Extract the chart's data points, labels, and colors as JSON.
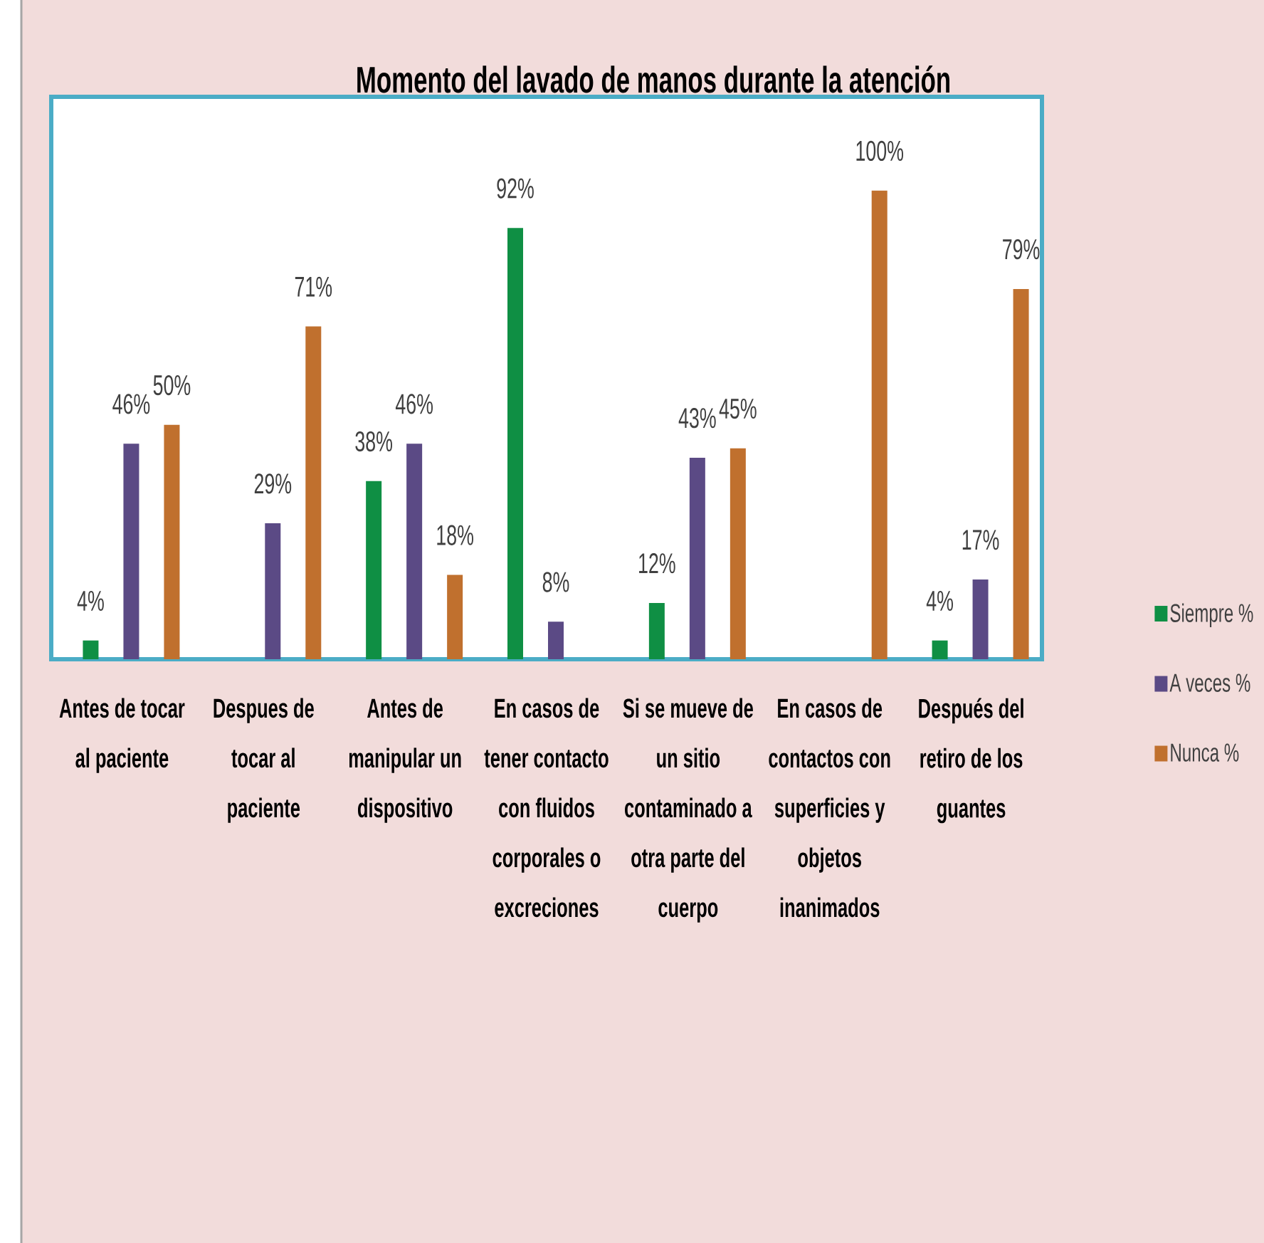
{
  "chart_data": {
    "type": "bar",
    "title": "Momento del lavado de manos durante la atención",
    "categories": [
      "Antes de tocar al paciente",
      "Despues de tocar al paciente",
      "Antes de manipular un dispositivo",
      "En casos de tener contacto con fluidos corporales o excreciones",
      "Si se mueve de un sitio contaminado a otra parte del cuerpo",
      "En casos de contactos con superficies y objetos inanimados",
      "Después del retiro de los guantes"
    ],
    "series": [
      {
        "name": "Siempre %",
        "color": "#0f8f44",
        "values": [
          4,
          null,
          38,
          92,
          12,
          null,
          4
        ],
        "value_labels": [
          "4%",
          null,
          "38%",
          "92%",
          "12%",
          null,
          "4%"
        ]
      },
      {
        "name": "A veces %",
        "color": "#5b4a85",
        "values": [
          46,
          29,
          46,
          8,
          43,
          null,
          17
        ],
        "value_labels": [
          "46%",
          "29%",
          "46%",
          "8%",
          "43%",
          null,
          "17%"
        ]
      },
      {
        "name": "Nunca %",
        "color": "#c0702e",
        "values": [
          50,
          71,
          18,
          null,
          45,
          100,
          79
        ],
        "value_labels": [
          "50%",
          "71%",
          "18%",
          null,
          "45%",
          "100%",
          "79%"
        ]
      }
    ],
    "ylim": [
      0,
      120
    ],
    "tick_labels": "x",
    "legend": "right"
  }
}
